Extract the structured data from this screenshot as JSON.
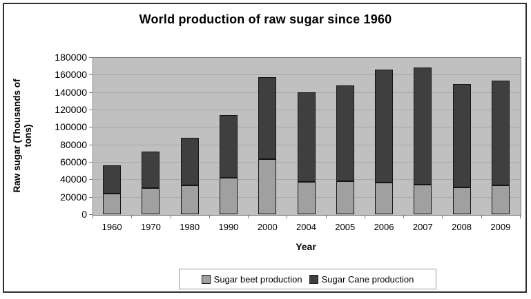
{
  "chart_data": {
    "type": "bar",
    "stacked": true,
    "title": "World production of raw sugar since 1960",
    "xlabel": "Year",
    "ylabel": "Raw sugar (Thousands of tons)",
    "ylabel_lines": [
      "Raw sugar (Thousands of",
      "tons)"
    ],
    "categories": [
      "1960",
      "1970",
      "1980",
      "1990",
      "2000",
      "2004",
      "2005",
      "2006",
      "2007",
      "2008",
      "2009"
    ],
    "series": [
      {
        "name": "Sugar beet production",
        "color": "#a0a0a0",
        "values": [
          24000,
          30000,
          33000,
          42000,
          63000,
          37000,
          38000,
          36000,
          34000,
          31000,
          33000
        ]
      },
      {
        "name": "Sugar Cane production",
        "color": "#3f3f3f",
        "values": [
          32000,
          42000,
          55000,
          72000,
          94000,
          103000,
          110000,
          130000,
          134000,
          118000,
          120000
        ]
      }
    ],
    "totals": [
      56000,
      72000,
      88000,
      114000,
      157000,
      140000,
      148000,
      166000,
      168000,
      149000,
      153000
    ],
    "ylim": [
      0,
      180000
    ],
    "yticks": [
      0,
      20000,
      40000,
      60000,
      80000,
      100000,
      120000,
      140000,
      160000,
      180000
    ],
    "grid": true,
    "legend_position": "bottom",
    "colors": {
      "plot_bg": "#c0c0c0",
      "gridline": "#a9a9a9",
      "bar_border": "#141414",
      "axis": "#7a7a7a",
      "frame_border": "#2e2e2e",
      "legend_border": "#9a9a9a",
      "legend_bg": "#ffffff",
      "text": "#000000"
    }
  }
}
